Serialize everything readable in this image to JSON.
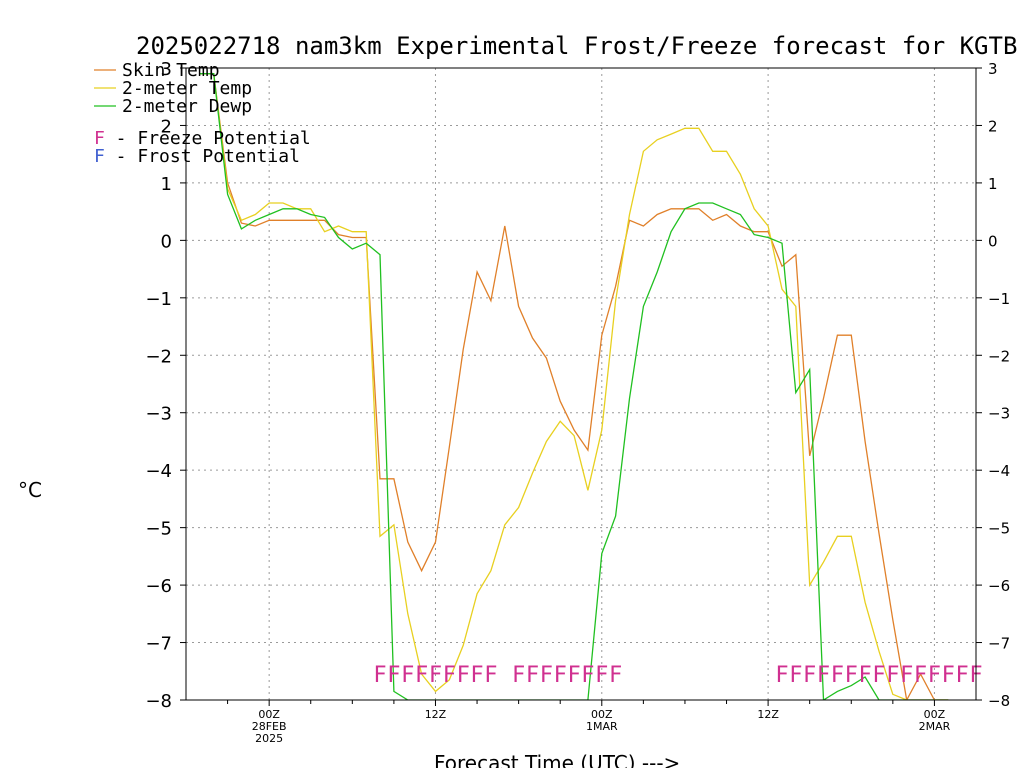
{
  "chart_data": {
    "type": "line",
    "title": "2025022718 nam3km Experimental Frost/Freeze forecast for KGTB",
    "ylabel": "°C",
    "xlabel": "Forecast Time (UTC) --->",
    "ylim": [
      -8,
      3
    ],
    "y_ticks": [
      "3",
      "2",
      "1",
      "0",
      "−1",
      "−2",
      "−3",
      "−4",
      "−5",
      "−6",
      "−7",
      "−8"
    ],
    "x_unit": "hours since 2025-02-27 18Z",
    "xlim": [
      0,
      57
    ],
    "x_ticks": [
      {
        "hour": 6,
        "lines": [
          "00Z",
          "28FEB",
          "2025"
        ]
      },
      {
        "hour": 18,
        "lines": [
          "12Z"
        ]
      },
      {
        "hour": 30,
        "lines": [
          "00Z",
          "1MAR"
        ]
      },
      {
        "hour": 42,
        "lines": [
          "12Z"
        ]
      },
      {
        "hour": 54,
        "lines": [
          "00Z",
          "2MAR"
        ]
      }
    ],
    "grid": true,
    "series": [
      {
        "name": "Skin Temp",
        "color": "#e0802a",
        "x": [
          1,
          2,
          3,
          4,
          5,
          6,
          7,
          8,
          9,
          10,
          11,
          12,
          13,
          14,
          15,
          16,
          17,
          18,
          19,
          20,
          21,
          22,
          23,
          24,
          25,
          26,
          27,
          28,
          29,
          30,
          31,
          32,
          33,
          34,
          35,
          36,
          37,
          38,
          39,
          40,
          41,
          42,
          43,
          44,
          45,
          46,
          47,
          48,
          49,
          50,
          51,
          52,
          53,
          54,
          55
        ],
        "values": [
          2.9,
          2.9,
          1.0,
          0.3,
          0.25,
          0.35,
          0.35,
          0.35,
          0.35,
          0.35,
          0.1,
          0.05,
          0.05,
          -4.15,
          -4.15,
          -5.25,
          -5.75,
          -5.25,
          -3.6,
          -1.9,
          -0.55,
          -1.05,
          0.25,
          -1.15,
          -1.7,
          -2.05,
          -2.8,
          -3.3,
          -3.65,
          -1.65,
          -0.8,
          0.35,
          0.25,
          0.45,
          0.55,
          0.55,
          0.55,
          0.35,
          0.45,
          0.25,
          0.15,
          0.15,
          -0.45,
          -0.25,
          -3.75,
          -2.75,
          -1.65,
          -1.65,
          -3.5,
          -5.1,
          -6.6,
          -8.0,
          -7.55,
          -8.0,
          -8.0
        ]
      },
      {
        "name": "2-meter Temp",
        "color": "#e8d020",
        "x": [
          1,
          2,
          3,
          4,
          5,
          6,
          7,
          8,
          9,
          10,
          11,
          12,
          13,
          14,
          15,
          16,
          17,
          18,
          19,
          20,
          21,
          22,
          23,
          24,
          25,
          26,
          27,
          28,
          29,
          30,
          31,
          32,
          33,
          34,
          35,
          36,
          37,
          38,
          39,
          40,
          41,
          42,
          43,
          44,
          45,
          46,
          47,
          48,
          49,
          50,
          51,
          52,
          53,
          54,
          55
        ],
        "values": [
          2.9,
          2.9,
          0.9,
          0.35,
          0.45,
          0.65,
          0.65,
          0.55,
          0.55,
          0.15,
          0.25,
          0.15,
          0.15,
          -5.15,
          -4.95,
          -6.5,
          -7.55,
          -7.85,
          -7.65,
          -7.05,
          -6.15,
          -5.75,
          -4.95,
          -4.65,
          -4.05,
          -3.5,
          -3.15,
          -3.4,
          -4.35,
          -3.3,
          -1.05,
          0.45,
          1.55,
          1.75,
          1.85,
          1.95,
          1.95,
          1.55,
          1.55,
          1.15,
          0.55,
          0.25,
          -0.85,
          -1.15,
          -6.0,
          -5.6,
          -5.15,
          -5.15,
          -6.3,
          -7.15,
          -7.9,
          -8.0,
          -8.0,
          -8.0,
          -8.0
        ]
      },
      {
        "name": "2-meter Dewp",
        "color": "#20c020",
        "x": [
          1,
          2,
          3,
          4,
          5,
          6,
          7,
          8,
          9,
          10,
          11,
          12,
          13,
          14,
          15,
          16,
          17,
          18,
          19,
          20,
          21,
          22,
          23,
          24,
          25,
          26,
          27,
          28,
          29,
          30,
          31,
          32,
          33,
          34,
          35,
          36,
          37,
          38,
          39,
          40,
          41,
          42,
          43,
          44,
          45,
          46,
          47,
          48,
          49,
          50,
          51,
          52,
          53,
          54,
          55
        ],
        "values": [
          2.9,
          2.9,
          0.8,
          0.2,
          0.35,
          0.45,
          0.55,
          0.55,
          0.45,
          0.4,
          0.05,
          -0.15,
          -0.05,
          -0.25,
          -7.85,
          -8.0,
          -8.0,
          -8.0,
          -8.0,
          -8.0,
          -8.0,
          -8.0,
          -8.0,
          -8.0,
          -8.0,
          -8.0,
          -8.0,
          -8.0,
          -8.0,
          -5.45,
          -4.8,
          -2.75,
          -1.15,
          -0.55,
          0.15,
          0.55,
          0.65,
          0.65,
          0.55,
          0.45,
          0.1,
          0.05,
          -0.05,
          -2.65,
          -2.25,
          -8.0,
          -7.85,
          -7.75,
          -7.6,
          -8.0,
          -8.0,
          -8.0,
          -8.0,
          -8.0,
          -8.0
        ]
      }
    ],
    "freeze_marker": {
      "name": "F - Freeze Potential",
      "letter": "F",
      "color": "#d03090",
      "value": -7.55,
      "hours": [
        14,
        15,
        16,
        17,
        18,
        19,
        20,
        21,
        22,
        24,
        25,
        26,
        27,
        28,
        29,
        30,
        31,
        43,
        44,
        45,
        46,
        47,
        48,
        49,
        50,
        51,
        52,
        53,
        54,
        55,
        56,
        57
      ]
    },
    "frost_marker": {
      "name": "F - Frost Potential",
      "letter": "F",
      "color": "#4060d0",
      "hours": []
    }
  },
  "legend": {
    "items": [
      {
        "name": "Skin Temp",
        "color": "#e0802a"
      },
      {
        "name": "2-meter Temp",
        "color": "#e8d020"
      },
      {
        "name": "2-meter Dewp",
        "color": "#20c020"
      }
    ],
    "markers": [
      {
        "letter": "F",
        "text": " - Freeze Potential",
        "color": "#d03090"
      },
      {
        "letter": "F",
        "text": " - Frost Potential",
        "color": "#4060d0"
      }
    ]
  }
}
